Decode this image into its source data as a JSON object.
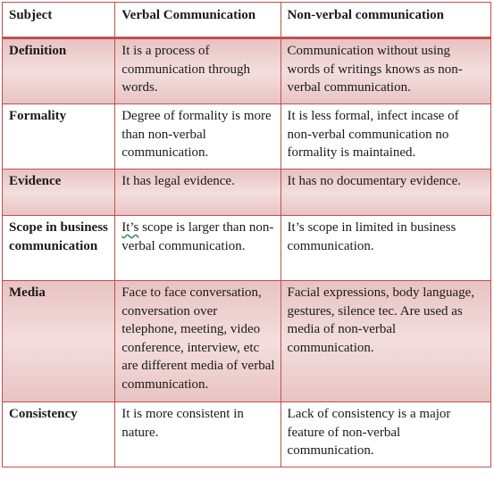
{
  "headers": [
    "Subject",
    "Verbal Communication",
    "Non-verbal communication"
  ],
  "rows": [
    {
      "subject": "Definition",
      "verbal": "It is a process of communication through words.",
      "nonverbal": "Communication without using words of writings knows as non-verbal communication."
    },
    {
      "subject": "Formality",
      "verbal": "Degree of formality is more than non-verbal communication.",
      "nonverbal": "It is less formal, infect incase of non-verbal communication no formality is maintained."
    },
    {
      "subject": "Evidence",
      "verbal": "It has legal evidence.",
      "nonverbal": "It has no documentary evidence."
    },
    {
      "subject": "Scope in business communication",
      "verbal_first_word": "It’s",
      "verbal_rest": " scope is larger than non-verbal communication.",
      "nonverbal": "It’s scope in limited in business communication."
    },
    {
      "subject": "Media",
      "verbal": "Face to face conversation, conversation over telephone, meeting, video conference, interview, etc are different media of verbal communication.",
      "nonverbal": "Facial expressions, body language, gestures, silence tec. Are used as media of non-verbal communication."
    },
    {
      "subject": "Consistency",
      "verbal": "It is more consistent in nature.",
      "nonverbal": "Lack of consistency is a major feature of non-verbal communication."
    }
  ],
  "colors": {
    "border": "#c0504d",
    "shade": "#ecd0cf"
  }
}
